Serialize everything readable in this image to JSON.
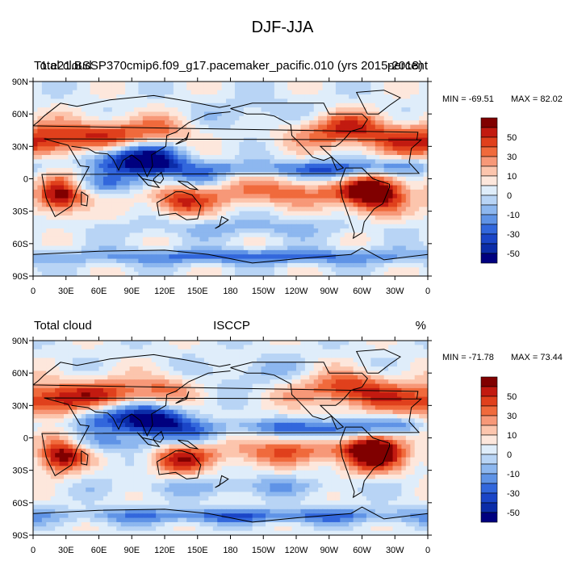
{
  "figure": {
    "title": "DJF-JJA"
  },
  "chart_data": [
    {
      "type": "heatmap",
      "left_title": "Total cloud",
      "center_title": "1.e21.BSSP370cmip6.f09_g17.pacemaker_pacific.010 (yrs 2015-2018)",
      "right_title": "percent",
      "stats": {
        "min_label": "MIN = -69.51",
        "max_label": "MAX =  82.02",
        "min": -69.51,
        "max": 82.02
      },
      "x_ticks": [
        "0",
        "30E",
        "60E",
        "90E",
        "120E",
        "150E",
        "180",
        "150W",
        "120W",
        "90W",
        "60W",
        "30W",
        "0"
      ],
      "y_ticks": [
        "90N",
        "60N",
        "30N",
        "0",
        "30S",
        "60S",
        "90S"
      ],
      "xlim": [
        0,
        360
      ],
      "ylim": [
        -90,
        90
      ]
    },
    {
      "type": "heatmap",
      "left_title": "Total cloud",
      "center_title": "ISCCP",
      "right_title": "%",
      "stats": {
        "min_label": "MIN = -71.78",
        "max_label": "MAX =  73.44",
        "min": -71.78,
        "max": 73.44
      },
      "x_ticks": [
        "0",
        "30E",
        "60E",
        "90E",
        "120E",
        "150E",
        "180",
        "150W",
        "120W",
        "90W",
        "60W",
        "30W",
        "0"
      ],
      "y_ticks": [
        "90N",
        "60N",
        "30N",
        "0",
        "30S",
        "60S",
        "90S"
      ],
      "xlim": [
        0,
        360
      ],
      "ylim": [
        -90,
        90
      ]
    }
  ],
  "colorbar": {
    "levels_shown": [
      "50",
      "30",
      "10",
      "0",
      "-10",
      "-30",
      "-50"
    ],
    "colors": [
      "#800000",
      "#c21a10",
      "#e0401c",
      "#f06a3c",
      "#f79878",
      "#fcc5ad",
      "#fde7dc",
      "#dfedfa",
      "#b8d4f5",
      "#8db7ef",
      "#5f93e6",
      "#3267dc",
      "#1a45c7",
      "#0b2ca8",
      "#00007f"
    ]
  }
}
